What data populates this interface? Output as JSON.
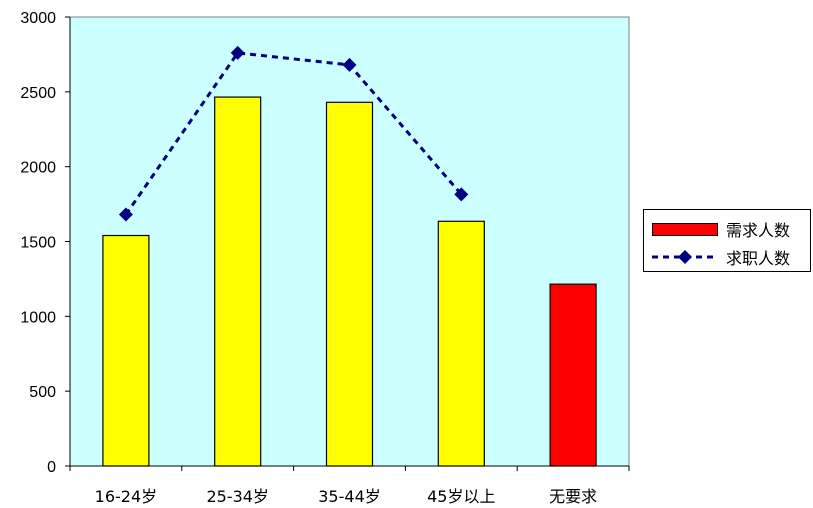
{
  "chart_data": {
    "type": "bar",
    "categories": [
      "16-24岁",
      "25-34岁",
      "35-44岁",
      "45岁以上",
      "无要求"
    ],
    "series": [
      {
        "name": "需求人数",
        "type": "bar",
        "values": [
          1540,
          2465,
          2430,
          1635,
          1215
        ],
        "colors": [
          "#ffff00",
          "#ffff00",
          "#ffff00",
          "#ffff00",
          "#ff0000"
        ]
      },
      {
        "name": "求职人数",
        "type": "line",
        "values": [
          1680,
          2760,
          2680,
          1815,
          null
        ],
        "color": "#000080",
        "style": "dashed",
        "marker": "diamond"
      }
    ],
    "ylim": [
      0,
      3000
    ],
    "yticks": [
      0,
      500,
      1000,
      1500,
      2000,
      2500,
      3000
    ],
    "plot_background": "#ccffff",
    "legend_position": "right"
  }
}
